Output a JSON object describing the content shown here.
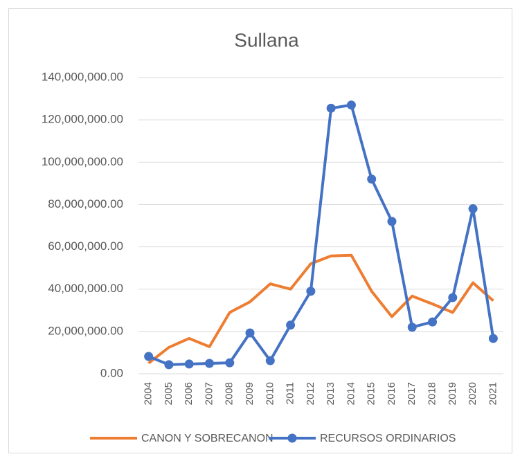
{
  "chart_data": {
    "type": "line",
    "title": "Sullana",
    "categories": [
      "2004",
      "2005",
      "2006",
      "2007",
      "2008",
      "2009",
      "2010",
      "2011",
      "2012",
      "2013",
      "2014",
      "2015",
      "2016",
      "2017",
      "2018",
      "2019",
      "2020",
      "2021"
    ],
    "series": [
      {
        "name": "CANON Y SOBRECANON",
        "color": "#ed7d31",
        "marker": false,
        "values": [
          5000000,
          12500000,
          16700000,
          12800000,
          29000000,
          34000000,
          42500000,
          40000000,
          52000000,
          55700000,
          56000000,
          39000000,
          27000000,
          36700000,
          33000000,
          29000000,
          43000000,
          34500000
        ]
      },
      {
        "name": "RECURSOS ORDINARIOS",
        "color": "#4472c4",
        "marker": true,
        "values": [
          8200000,
          4300000,
          4600000,
          4900000,
          5200000,
          19300000,
          6200000,
          23000000,
          39000000,
          125500000,
          127000000,
          92000000,
          72000000,
          22000000,
          24500000,
          36000000,
          78000000,
          16700000
        ]
      }
    ],
    "ylim": [
      0,
      140000000
    ],
    "yticks": [
      {
        "value": 0,
        "label": "0.00"
      },
      {
        "value": 20000000,
        "label": "20,000,000.00"
      },
      {
        "value": 40000000,
        "label": "40,000,000.00"
      },
      {
        "value": 60000000,
        "label": "60,000,000.00"
      },
      {
        "value": 80000000,
        "label": "80,000,000.00"
      },
      {
        "value": 100000000,
        "label": "100,000,000.00"
      },
      {
        "value": 120000000,
        "label": "120,000,000.00"
      },
      {
        "value": 140000000,
        "label": "140,000,000.00"
      }
    ],
    "grid": true,
    "legend": "bottom"
  }
}
